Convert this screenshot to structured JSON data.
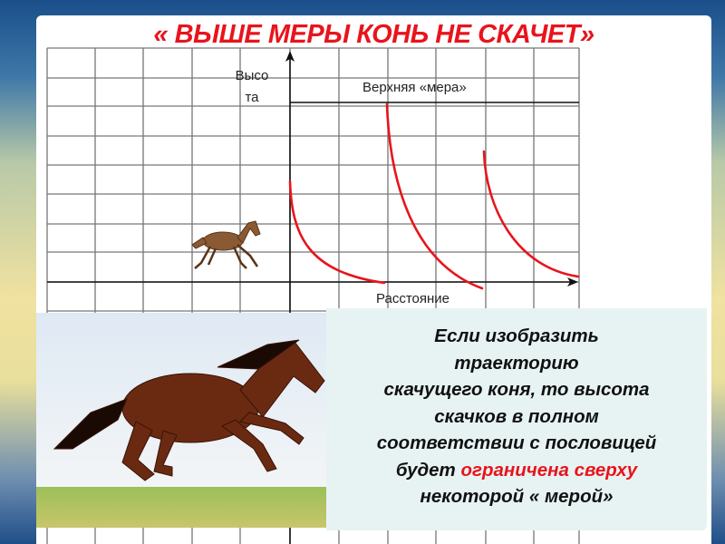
{
  "slide": {
    "title": "« ВЫШЕ МЕРЫ КОНЬ НЕ СКАЧЕТ»",
    "diagram": {
      "y_axis_label_line1": "Высо",
      "y_axis_label_line2": "та",
      "x_axis_label": "Расстояние",
      "limit_label": "Верхняя «мера»",
      "curve_color": "#e8141c"
    },
    "text": {
      "line1": "Если изобразить",
      "line2": "траекторию",
      "line3": "скачущего коня, то высота",
      "line4": "скачков в полном",
      "line5": "соответствии с пословицей",
      "line6_start": "будет ",
      "line6_highlight": "ограничена сверху",
      "line7": "некоторой « мерой»"
    },
    "accent_color": "#e8141c"
  }
}
